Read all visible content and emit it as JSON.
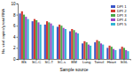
{
  "chart_data": {
    "type": "bar",
    "x_label": "Sample source",
    "y_label": "No. viral copies/g total RNA",
    "categories": [
      "BS",
      "SC-C",
      "SC-T",
      "SC-s",
      "BM",
      "Lung",
      "Tonsil",
      "Heart",
      "SGL"
    ],
    "series": [
      {
        "name": "DPI 1",
        "color": "#3a55c8",
        "values": [
          8.2,
          6.8,
          6.2,
          5.8,
          5.0,
          2.8,
          3.0,
          2.0,
          1.8
        ]
      },
      {
        "name": "DPI 2",
        "color": "#d33a32",
        "values": [
          8.6,
          7.2,
          6.8,
          6.2,
          5.4,
          3.2,
          3.4,
          2.4,
          2.2
        ]
      },
      {
        "name": "DPI 3",
        "color": "#4aa84a",
        "values": [
          8.0,
          7.0,
          6.6,
          6.0,
          5.2,
          3.0,
          3.2,
          2.2,
          2.0
        ]
      },
      {
        "name": "DPI 4",
        "color": "#9a48c4",
        "values": [
          7.6,
          6.6,
          6.4,
          5.6,
          4.8,
          2.6,
          2.8,
          1.8,
          1.6
        ]
      },
      {
        "name": "DPI 5",
        "color": "#34b4d4",
        "values": [
          7.2,
          6.2,
          6.0,
          5.4,
          4.6,
          2.4,
          2.6,
          1.6,
          1.4
        ]
      }
    ],
    "ylim": [
      0,
      10
    ],
    "yticks": [
      0,
      2,
      4,
      6,
      8,
      10
    ],
    "legend": "upper right",
    "grid": false
  }
}
